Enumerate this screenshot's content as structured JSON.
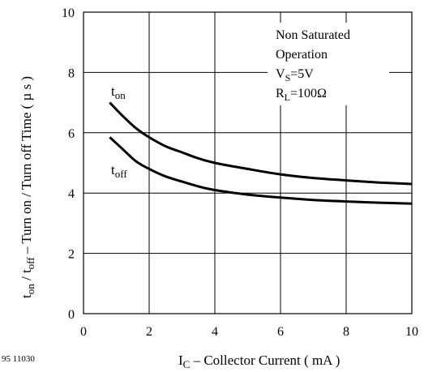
{
  "chart_data": {
    "type": "line",
    "figure_ref": "95 11030",
    "xlabel": {
      "main": "I",
      "sub": "C",
      "rest": " – Collector Current ( mA )"
    },
    "ylabel": {
      "p1": "t",
      "s1": "on",
      "p2": " / t",
      "s2": "off",
      "rest": "  – Turn on / Turn off Time ( µ s )"
    },
    "xlim": [
      0,
      10
    ],
    "ylim": [
      0,
      10
    ],
    "x_ticks": [
      "0",
      "2",
      "4",
      "6",
      "8",
      "10"
    ],
    "y_ticks": [
      "0",
      "2",
      "4",
      "6",
      "8",
      "10"
    ],
    "grid": true,
    "annotation": {
      "line1": "Non Saturated",
      "line2": "Operation",
      "vs_main": "V",
      "vs_sub": "S",
      "vs_rest": "=5V",
      "rl_main": "R",
      "rl_sub": "L",
      "rl_rest": "=100Ω"
    },
    "series": [
      {
        "label_main": "t",
        "label_sub": "on",
        "x": [
          0.8,
          1.2,
          1.6,
          2.0,
          2.5,
          3,
          3.5,
          4,
          5,
          6,
          7,
          8,
          9,
          10
        ],
        "y": [
          7.0,
          6.55,
          6.15,
          5.85,
          5.55,
          5.35,
          5.15,
          5.0,
          4.8,
          4.62,
          4.5,
          4.42,
          4.35,
          4.3
        ]
      },
      {
        "label_main": "t",
        "label_sub": "off",
        "x": [
          0.8,
          1.2,
          1.6,
          2.0,
          2.5,
          3,
          3.5,
          4,
          5,
          6,
          7,
          8,
          9,
          10
        ],
        "y": [
          5.85,
          5.45,
          5.05,
          4.8,
          4.55,
          4.38,
          4.22,
          4.1,
          3.95,
          3.85,
          3.77,
          3.72,
          3.68,
          3.65
        ]
      }
    ]
  }
}
